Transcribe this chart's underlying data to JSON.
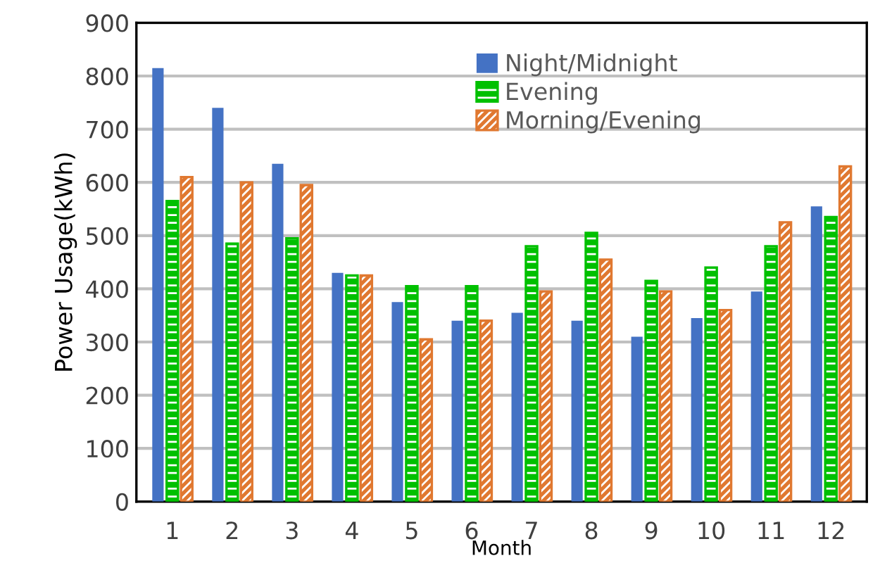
{
  "chart_data": {
    "type": "bar",
    "xlabel": "Month",
    "ylabel": "Power Usage(kWh)",
    "categories": [
      "1",
      "2",
      "3",
      "4",
      "5",
      "6",
      "7",
      "8",
      "9",
      "10",
      "11",
      "12"
    ],
    "series": [
      {
        "name": "Night/Midnight",
        "color": "#4472c4",
        "values": [
          815,
          740,
          635,
          430,
          375,
          340,
          355,
          340,
          310,
          345,
          395,
          555
        ]
      },
      {
        "name": "Evening",
        "color": "#00c000",
        "values": [
          565,
          485,
          495,
          425,
          405,
          405,
          480,
          505,
          415,
          440,
          480,
          535
        ]
      },
      {
        "name": "Morning/Evening",
        "color": "#e07830",
        "values": [
          610,
          600,
          595,
          425,
          305,
          340,
          395,
          455,
          395,
          360,
          525,
          630
        ]
      }
    ],
    "ylim": [
      0,
      900
    ],
    "yticks": [
      0,
      100,
      200,
      300,
      400,
      500,
      600,
      700,
      800,
      900
    ],
    "grid": "y",
    "legend": "top"
  }
}
